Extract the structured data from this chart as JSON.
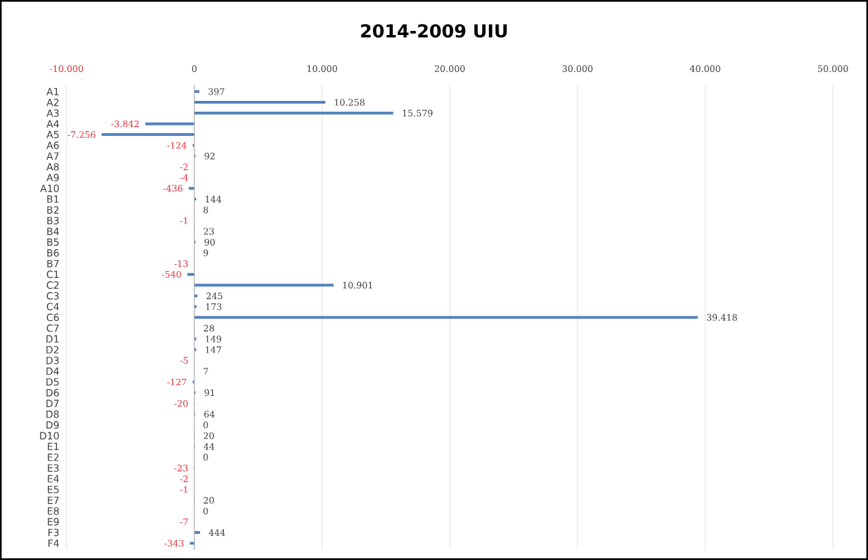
{
  "chart_data": {
    "type": "bar",
    "orientation": "horizontal",
    "title": "2014-2009   UIU",
    "color": "#4f81bd",
    "categories": [
      "A1",
      "A2",
      "A3",
      "A4",
      "A5",
      "A6",
      "A7",
      "A8",
      "A9",
      "A10",
      "B1",
      "B2",
      "B3",
      "B4",
      "B5",
      "B6",
      "B7",
      "C1",
      "C2",
      "C3",
      "C4",
      "C6",
      "C7",
      "D1",
      "D2",
      "D3",
      "D4",
      "D5",
      "D6",
      "D7",
      "D8",
      "D9",
      "D10",
      "E1",
      "E2",
      "E3",
      "E4",
      "E5",
      "E7",
      "E8",
      "E9",
      "F3",
      "F4"
    ],
    "values": [
      397,
      10258,
      15579,
      -3842,
      -7256,
      -124,
      92,
      -2,
      -4,
      -436,
      144,
      8,
      -1,
      23,
      90,
      9,
      -13,
      -540,
      10901,
      245,
      173,
      39418,
      28,
      149,
      147,
      -5,
      7,
      -127,
      91,
      -20,
      64,
      0,
      20,
      44,
      0,
      -23,
      -2,
      -1,
      20,
      0,
      -7,
      444,
      -343
    ],
    "value_labels": [
      "397",
      "10.258",
      "15.579",
      "-3.842",
      "-7.256",
      "-124",
      "92",
      "-2",
      "-4",
      "-436",
      "144",
      "8",
      "-1",
      "23",
      "90",
      "9",
      "-13",
      "-540",
      "10.901",
      "245",
      "173",
      "39.418",
      "28",
      "149",
      "147",
      "-5",
      "7",
      "-127",
      "91",
      "-20",
      "64",
      "0",
      "20",
      "44",
      "0",
      "-23",
      "-2",
      "-1",
      "20",
      "0",
      "-7",
      "444",
      "-343"
    ],
    "xlim": [
      -10000,
      50000
    ],
    "xticks": [
      {
        "value": -10000,
        "label": "-10.000"
      },
      0,
      {
        "value": 10000,
        "label": "10.000"
      },
      {
        "value": 20000,
        "label": "20.000"
      },
      {
        "value": 30000,
        "label": "30.000"
      },
      {
        "value": 40000,
        "label": "40.000"
      },
      {
        "value": 50000,
        "label": "50.000"
      }
    ],
    "grid": "x"
  }
}
